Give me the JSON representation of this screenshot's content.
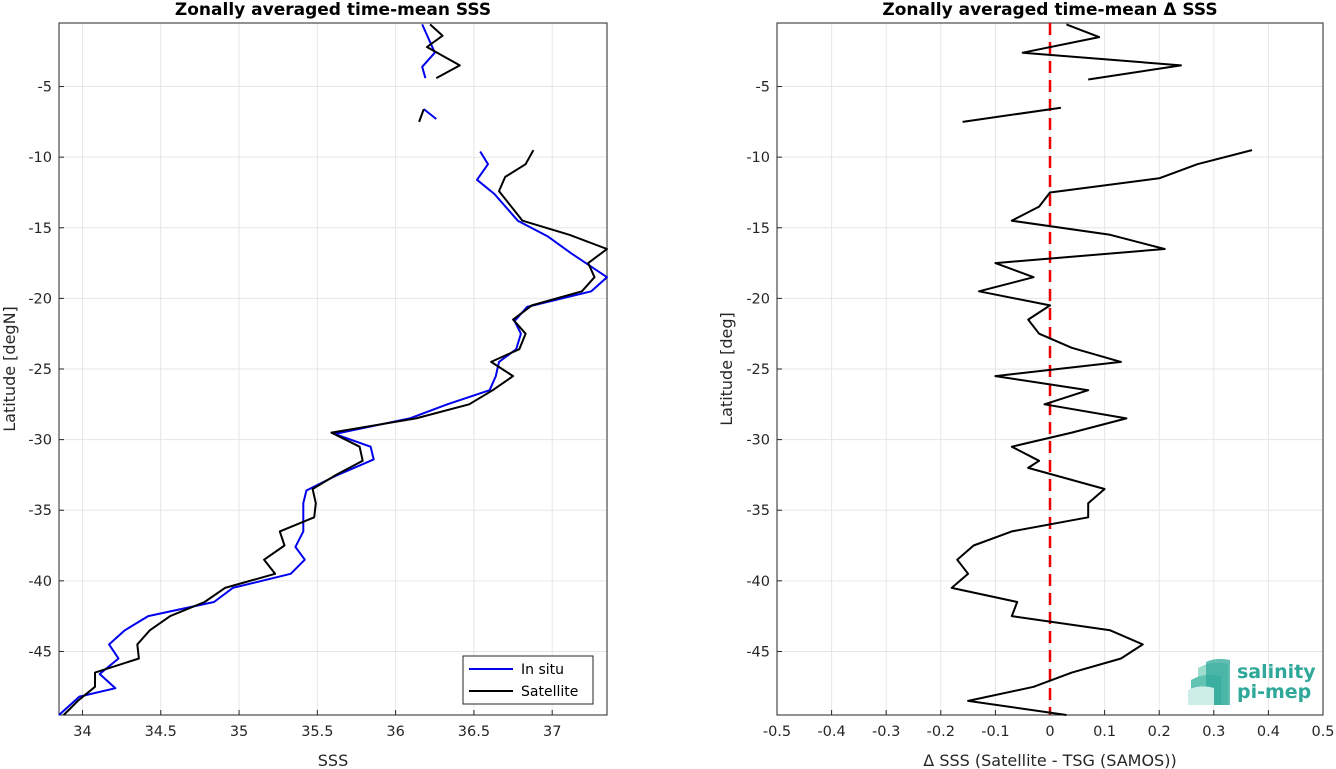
{
  "chart_data": [
    {
      "type": "line",
      "title": "Zonally averaged time-mean SSS",
      "xlabel": "SSS",
      "ylabel": "Latitude [degN]",
      "xlim": [
        33.85,
        37.35
      ],
      "ylim": [
        -49.5,
        -0.5
      ],
      "xticks": [
        34,
        34.5,
        35,
        35.5,
        36,
        36.5,
        37
      ],
      "xtick_labels": [
        "34",
        "34.5",
        "35",
        "35.5",
        "36",
        "36.5",
        "37"
      ],
      "yticks": [
        -5,
        -10,
        -15,
        -20,
        -25,
        -30,
        -35,
        -40,
        -45
      ],
      "ytick_labels": [
        "-5",
        "-10",
        "-15",
        "-20",
        "-25",
        "-30",
        "-35",
        "-40",
        "-45"
      ],
      "grid": true,
      "legend_position": "bottom-right",
      "series": [
        {
          "name": "In situ",
          "color": "#0000ee",
          "segments": [
            [
              [
                36.17,
                -0.6
              ],
              [
                36.21,
                -1.6
              ],
              [
                36.25,
                -2.6
              ],
              [
                36.17,
                -3.6
              ],
              [
                36.19,
                -4.4
              ]
            ],
            [
              [
                36.26,
                -7.3
              ],
              [
                36.18,
                -6.6
              ]
            ],
            [
              [
                36.54,
                -9.6
              ],
              [
                36.59,
                -10.5
              ],
              [
                36.52,
                -11.6
              ],
              [
                36.63,
                -12.6
              ],
              [
                36.78,
                -14.5
              ],
              [
                36.97,
                -15.6
              ],
              [
                37.12,
                -16.8
              ],
              [
                37.35,
                -18.5
              ],
              [
                37.25,
                -19.5
              ],
              [
                36.84,
                -20.6
              ],
              [
                36.76,
                -21.6
              ],
              [
                36.8,
                -22.5
              ],
              [
                36.77,
                -23.6
              ],
              [
                36.66,
                -24.5
              ],
              [
                36.64,
                -25.5
              ],
              [
                36.6,
                -26.5
              ],
              [
                36.33,
                -27.5
              ],
              [
                36.09,
                -28.5
              ],
              [
                35.61,
                -29.6
              ],
              [
                35.84,
                -30.5
              ],
              [
                35.86,
                -31.4
              ],
              [
                35.63,
                -32.5
              ],
              [
                35.43,
                -33.6
              ],
              [
                35.41,
                -34.5
              ],
              [
                35.41,
                -35.5
              ],
              [
                35.41,
                -36.5
              ],
              [
                35.36,
                -37.6
              ],
              [
                35.42,
                -38.5
              ],
              [
                35.33,
                -39.5
              ],
              [
                34.96,
                -40.5
              ],
              [
                34.84,
                -41.5
              ],
              [
                34.42,
                -42.5
              ],
              [
                34.27,
                -43.5
              ],
              [
                34.17,
                -44.5
              ],
              [
                34.23,
                -45.5
              ],
              [
                34.11,
                -46.6
              ],
              [
                34.21,
                -47.6
              ],
              [
                33.98,
                -48.2
              ],
              [
                33.85,
                -49.5
              ]
            ]
          ]
        },
        {
          "name": "Satellite",
          "color": "#000000",
          "segments": [
            [
              [
                36.22,
                -0.6
              ],
              [
                36.3,
                -1.4
              ],
              [
                36.2,
                -2.2
              ],
              [
                36.41,
                -3.5
              ],
              [
                36.26,
                -4.4
              ]
            ],
            [
              [
                36.15,
                -7.5
              ],
              [
                36.18,
                -6.6
              ]
            ],
            [
              [
                36.88,
                -9.5
              ],
              [
                36.83,
                -10.5
              ],
              [
                36.7,
                -11.4
              ],
              [
                36.66,
                -12.4
              ],
              [
                36.81,
                -14.5
              ],
              [
                37.11,
                -15.5
              ],
              [
                37.35,
                -16.5
              ],
              [
                37.23,
                -17.5
              ],
              [
                37.27,
                -18.5
              ],
              [
                37.19,
                -19.5
              ],
              [
                36.87,
                -20.5
              ],
              [
                36.75,
                -21.5
              ],
              [
                36.83,
                -22.5
              ],
              [
                36.79,
                -23.6
              ],
              [
                36.61,
                -24.5
              ],
              [
                36.75,
                -25.5
              ],
              [
                36.62,
                -26.5
              ],
              [
                36.47,
                -27.5
              ],
              [
                36.13,
                -28.5
              ],
              [
                35.59,
                -29.5
              ],
              [
                35.77,
                -30.5
              ],
              [
                35.79,
                -31.5
              ],
              [
                35.62,
                -32.5
              ],
              [
                35.47,
                -33.5
              ],
              [
                35.49,
                -34.5
              ],
              [
                35.48,
                -35.5
              ],
              [
                35.26,
                -36.5
              ],
              [
                35.29,
                -37.5
              ],
              [
                35.16,
                -38.5
              ],
              [
                35.23,
                -39.5
              ],
              [
                34.91,
                -40.5
              ],
              [
                34.78,
                -41.5
              ],
              [
                34.56,
                -42.5
              ],
              [
                34.43,
                -43.5
              ],
              [
                34.35,
                -44.5
              ],
              [
                34.36,
                -45.5
              ],
              [
                34.08,
                -46.5
              ],
              [
                34.08,
                -47.5
              ],
              [
                33.97,
                -48.5
              ],
              [
                33.88,
                -49.5
              ]
            ]
          ]
        }
      ]
    },
    {
      "type": "line",
      "title": "Zonally averaged time-mean Δ SSS",
      "xlabel": "Δ SSS (Satellite - TSG (SAMOS))",
      "ylabel": "Latitude [deg]",
      "xlim": [
        -0.5,
        0.5
      ],
      "ylim": [
        -49.5,
        -0.5
      ],
      "xticks": [
        -0.5,
        -0.4,
        -0.3,
        -0.2,
        -0.1,
        0,
        0.1,
        0.2,
        0.3,
        0.4,
        0.5
      ],
      "xtick_labels": [
        "-0.5",
        "-0.4",
        "-0.3",
        "-0.2",
        "-0.1",
        "0",
        "0.1",
        "0.2",
        "0.3",
        "0.4",
        "0.5"
      ],
      "yticks": [
        -5,
        -10,
        -15,
        -20,
        -25,
        -30,
        -35,
        -40,
        -45
      ],
      "ytick_labels": [
        "-5",
        "-10",
        "-15",
        "-20",
        "-25",
        "-30",
        "-35",
        "-40",
        "-45"
      ],
      "grid": true,
      "reference_line": {
        "x": 0,
        "color": "#ee0000",
        "style": "dashed"
      },
      "series": [
        {
          "color": "#000000",
          "segments": [
            [
              [
                0.03,
                -0.6
              ],
              [
                0.09,
                -1.5
              ],
              [
                -0.05,
                -2.6
              ],
              [
                0.24,
                -3.5
              ],
              [
                0.07,
                -4.5
              ]
            ],
            [
              [
                -0.16,
                -7.5
              ],
              [
                0.02,
                -6.5
              ]
            ],
            [
              [
                0.37,
                -9.5
              ],
              [
                0.27,
                -10.5
              ],
              [
                0.2,
                -11.5
              ],
              [
                0,
                -12.5
              ],
              [
                -0.02,
                -13.5
              ],
              [
                -0.07,
                -14.5
              ],
              [
                0.11,
                -15.5
              ],
              [
                0.21,
                -16.5
              ],
              [
                -0.1,
                -17.5
              ],
              [
                -0.03,
                -18.5
              ],
              [
                -0.13,
                -19.5
              ],
              [
                0,
                -20.5
              ],
              [
                -0.04,
                -21.5
              ],
              [
                -0.02,
                -22.5
              ],
              [
                0.04,
                -23.5
              ],
              [
                0.13,
                -24.5
              ],
              [
                -0.1,
                -25.5
              ],
              [
                0.07,
                -26.5
              ],
              [
                -0.01,
                -27.5
              ],
              [
                0.14,
                -28.5
              ],
              [
                0.04,
                -29.5
              ],
              [
                -0.07,
                -30.5
              ],
              [
                -0.02,
                -31.5
              ],
              [
                -0.04,
                -32
              ],
              [
                0.1,
                -33.5
              ],
              [
                0.07,
                -34.5
              ],
              [
                0.07,
                -35.5
              ],
              [
                -0.07,
                -36.5
              ],
              [
                -0.14,
                -37.5
              ],
              [
                -0.17,
                -38.5
              ],
              [
                -0.15,
                -39.5
              ],
              [
                -0.18,
                -40.5
              ],
              [
                -0.06,
                -41.5
              ],
              [
                -0.07,
                -42.5
              ],
              [
                0.11,
                -43.5
              ],
              [
                0.17,
                -44.5
              ],
              [
                0.13,
                -45.5
              ],
              [
                0.04,
                -46.5
              ],
              [
                -0.03,
                -47.5
              ],
              [
                -0.15,
                -48.5
              ],
              [
                0.03,
                -49.5
              ]
            ]
          ]
        }
      ]
    }
  ],
  "logo": {
    "line1": "salinity",
    "line2": "pi-mep"
  }
}
